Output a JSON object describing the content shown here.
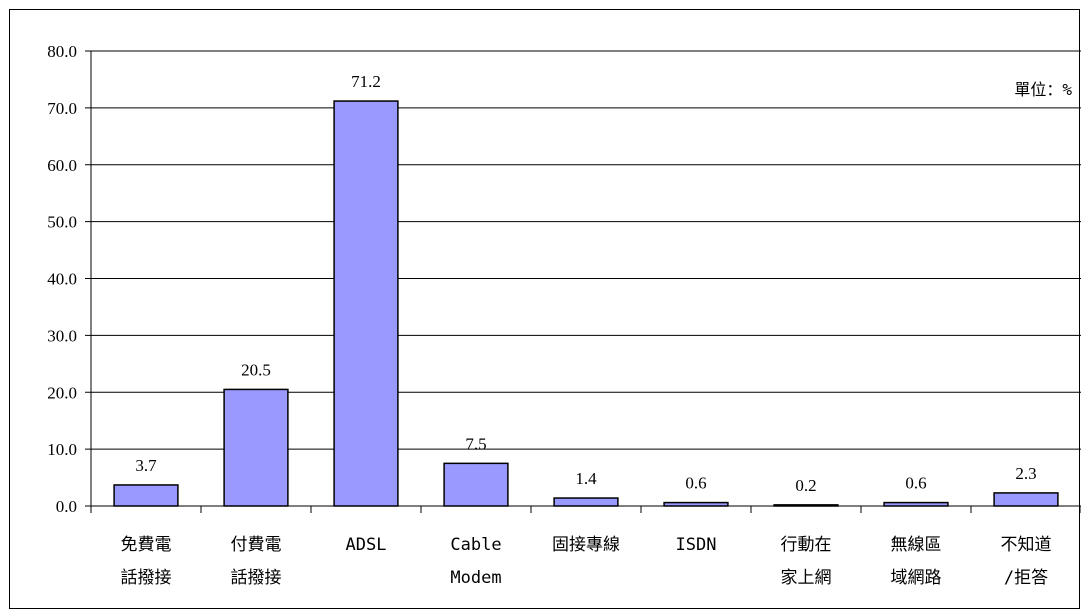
{
  "chart_data": {
    "type": "bar",
    "unit_note": "單位：%",
    "categories": [
      [
        "免費電",
        "話撥接"
      ],
      [
        "付費電",
        "話撥接"
      ],
      [
        "ADSL"
      ],
      [
        "Cable",
        "Modem"
      ],
      [
        "固接專線"
      ],
      [
        "ISDN"
      ],
      [
        "行動在",
        "家上網"
      ],
      [
        "無線區",
        "域網路"
      ],
      [
        "不知道",
        "/拒答"
      ]
    ],
    "values": [
      3.7,
      20.5,
      71.2,
      7.5,
      1.4,
      0.6,
      0.2,
      0.6,
      2.3
    ],
    "value_labels": [
      "3.7",
      "20.5",
      "71.2",
      "7.5",
      "1.4",
      "0.6",
      "0.2",
      "0.6",
      "2.3"
    ],
    "ylim": [
      0,
      80
    ],
    "yticks": [
      0,
      10,
      20,
      30,
      40,
      50,
      60,
      70,
      80
    ],
    "ytick_labels": [
      "0.0",
      "10.0",
      "20.0",
      "30.0",
      "40.0",
      "50.0",
      "60.0",
      "70.0",
      "80.0"
    ],
    "grid": true,
    "bar_color": "#9999ff",
    "bar_stroke": "#000000"
  }
}
